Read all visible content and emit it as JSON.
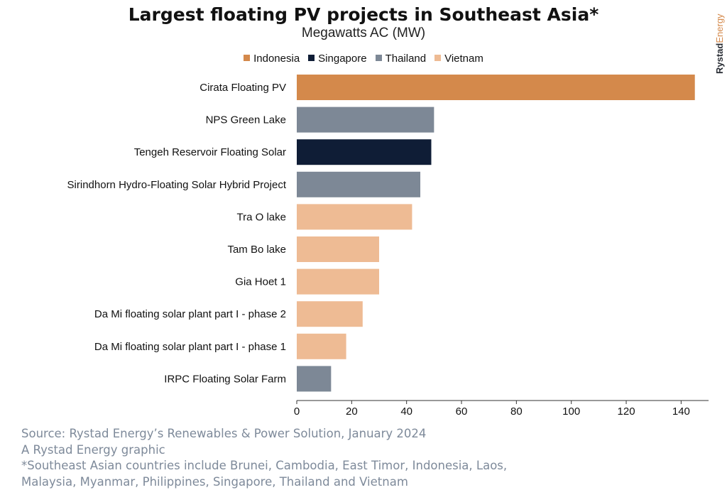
{
  "brand": {
    "part1": "Rystad",
    "part2": "Energy"
  },
  "footer": {
    "source": "Source: Rystad Energy’s Renewables & Power Solution, January 2024",
    "credit": "A Rystad Energy graphic",
    "note_line1": "*Southeast Asian countries include Brunei, Cambodia, East Timor, Indonesia, Laos,",
    "note_line2": "Malaysia, Myanmar, Philippines, Singapore, Thailand and Vietnam"
  },
  "chart_data": {
    "type": "bar",
    "orientation": "horizontal",
    "title": "Largest floating PV projects in Southeast Asia*",
    "subtitle": "Megawatts AC (MW)",
    "xlabel": "",
    "ylabel": "",
    "xlim": [
      0,
      150
    ],
    "xticks": [
      0,
      20,
      40,
      60,
      80,
      100,
      120,
      140
    ],
    "grid": false,
    "legend_position": "top",
    "legend": [
      {
        "name": "Indonesia",
        "color": "#d4894b"
      },
      {
        "name": "Singapore",
        "color": "#0f1d36"
      },
      {
        "name": "Thailand",
        "color": "#7d8896"
      },
      {
        "name": "Vietnam",
        "color": "#eebb94"
      }
    ],
    "categories": [
      "Cirata Floating PV",
      "NPS Green Lake",
      "Tengeh Reservoir Floating Solar",
      "Sirindhorn Hydro-Floating Solar Hybrid Project",
      "Tra O lake",
      "Tam Bo lake",
      "Gia Hoet 1",
      "Da Mi floating solar plant part I - phase 2",
      "Da Mi floating solar plant part I - phase 1",
      "IRPC Floating Solar Farm"
    ],
    "values": [
      145,
      50,
      49,
      45,
      42,
      30,
      30,
      24,
      18,
      12.5
    ],
    "country": [
      "Indonesia",
      "Thailand",
      "Singapore",
      "Thailand",
      "Vietnam",
      "Vietnam",
      "Vietnam",
      "Vietnam",
      "Vietnam",
      "Thailand"
    ]
  }
}
